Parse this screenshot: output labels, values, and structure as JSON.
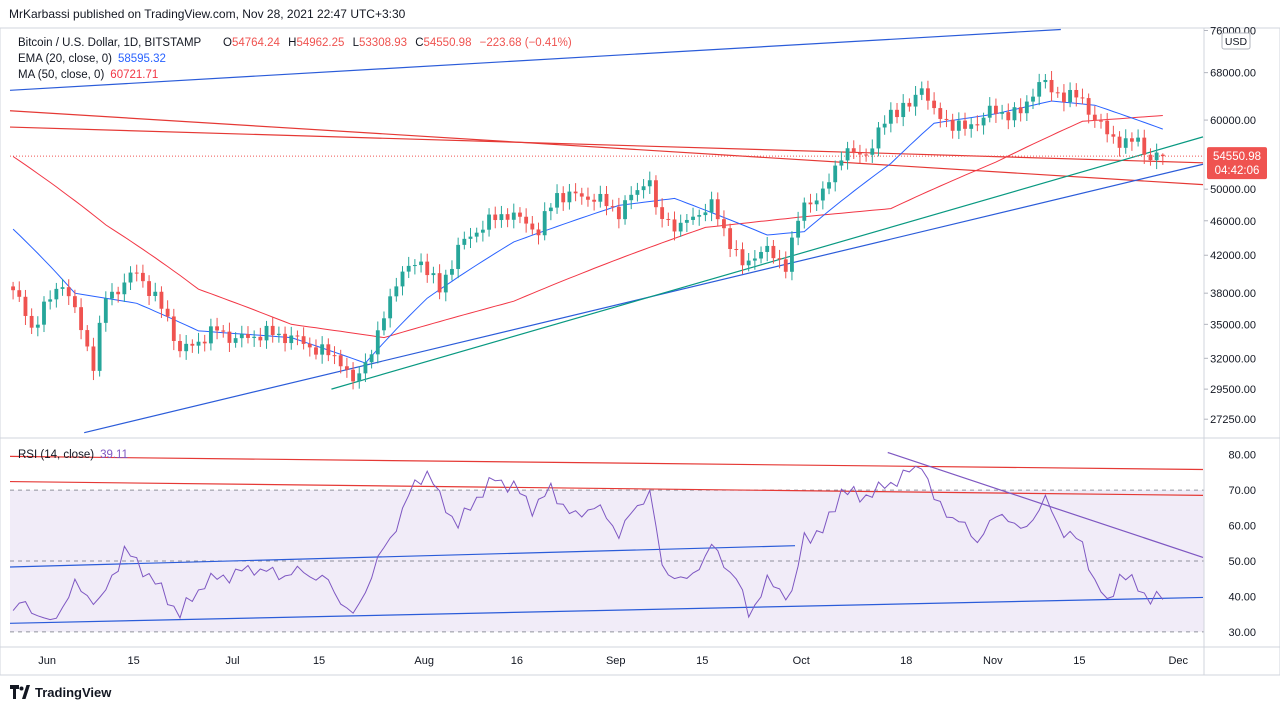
{
  "header": {
    "publisher_line": "MrKarbassi published on TradingView.com, Nov 28, 2021 22:47 UTC+3:30"
  },
  "legend": {
    "symbol": "Bitcoin / U.S. Dollar, 1D, BITSTAMP",
    "ohlc": [
      {
        "label": "O",
        "value": "54764.24"
      },
      {
        "label": "H",
        "value": "54962.25"
      },
      {
        "label": "L",
        "value": "53308.93"
      },
      {
        "label": "C",
        "value": "54550.98"
      }
    ],
    "change": "−223.68 (−0.41%)",
    "ema_label": "EMA (20, close, 0)",
    "ema_value": "58595.32",
    "ma_label": "MA (50, close, 0)",
    "ma_value": "60721.71"
  },
  "rsi_legend": {
    "label": "RSI (14, close)",
    "value": "39.11"
  },
  "price_badge": {
    "price": "54550.98",
    "countdown": "04:42:06"
  },
  "currency": "USD",
  "footer": {
    "brand": "TradingView"
  },
  "colors": {
    "up": "#26a69a",
    "down": "#ef5350",
    "ema": "#2962ff",
    "ma": "#f23645",
    "rsi": "#7e57c2",
    "rsi_band": "#ede7f6",
    "trend_blue": "#2b5cd9",
    "trend_red": "#e53935",
    "trend_green": "#089981",
    "trend_purple": "#7e57c2"
  },
  "chart_data": [
    {
      "type": "candlestick",
      "y_axis_scale": "log",
      "ylim": [
        26000,
        76500
      ],
      "y_ticks": [
        27250,
        29500,
        32000,
        35000,
        38000,
        42000,
        46000,
        50000,
        54550.98,
        60000,
        68000,
        76000
      ],
      "y_tick_labels": [
        "27250.00",
        "29500.00",
        "32000.00",
        "35000.00",
        "38000.00",
        "42000.00",
        "46000.00",
        "50000.00",
        "54550.98",
        "60000.00",
        "68000.00",
        "76000.00"
      ],
      "x_ticks": [
        "2021-06-01",
        "2021-06-15",
        "2021-07-01",
        "2021-07-15",
        "2021-08-01",
        "2021-08-16",
        "2021-09-01",
        "2021-09-15",
        "2021-10-01",
        "2021-10-18",
        "2021-11-01",
        "2021-11-15",
        "2021-12-01"
      ],
      "x_tick_labels": [
        "Jun",
        "15",
        "Jul",
        "15",
        "Aug",
        "16",
        "Sep",
        "15",
        "Oct",
        "18",
        "Nov",
        "15",
        "Dec"
      ],
      "xlim": [
        "2021-05-26",
        "2021-12-05"
      ],
      "anchors": [
        [
          "2021-05-26",
          38300
        ],
        [
          "2021-05-29",
          34700
        ],
        [
          "2021-06-03",
          39200
        ],
        [
          "2021-06-08",
          31500
        ],
        [
          "2021-06-10",
          37500
        ],
        [
          "2021-06-13",
          39000
        ],
        [
          "2021-06-15",
          40200
        ],
        [
          "2021-06-20",
          35600
        ],
        [
          "2021-06-22",
          32500
        ],
        [
          "2021-06-28",
          34500
        ],
        [
          "2021-07-01",
          33600
        ],
        [
          "2021-07-06",
          34200
        ],
        [
          "2021-07-10",
          33800
        ],
        [
          "2021-07-14",
          32800
        ],
        [
          "2021-07-18",
          31900
        ],
        [
          "2021-07-20",
          29800
        ],
        [
          "2021-07-24",
          33800
        ],
        [
          "2021-07-27",
          39400
        ],
        [
          "2021-07-31",
          41500
        ],
        [
          "2021-08-03",
          38200
        ],
        [
          "2021-08-06",
          42800
        ],
        [
          "2021-08-10",
          45500
        ],
        [
          "2021-08-14",
          47000
        ],
        [
          "2021-08-19",
          44800
        ],
        [
          "2021-08-22",
          49300
        ],
        [
          "2021-08-28",
          48900
        ],
        [
          "2021-09-01",
          47100
        ],
        [
          "2021-09-06",
          51700
        ],
        [
          "2021-09-07",
          46800
        ],
        [
          "2021-09-11",
          45200
        ],
        [
          "2021-09-14",
          47100
        ],
        [
          "2021-09-16",
          47800
        ],
        [
          "2021-09-21",
          40700
        ],
        [
          "2021-09-24",
          42700
        ],
        [
          "2021-09-28",
          41000
        ],
        [
          "2021-10-01",
          48200
        ],
        [
          "2021-10-04",
          49200
        ],
        [
          "2021-10-07",
          55000
        ],
        [
          "2021-10-10",
          54700
        ],
        [
          "2021-10-12",
          56000
        ],
        [
          "2021-10-15",
          61500
        ],
        [
          "2021-10-18",
          62000
        ],
        [
          "2021-10-20",
          66000
        ],
        [
          "2021-10-22",
          60900
        ],
        [
          "2021-10-27",
          58500
        ],
        [
          "2021-10-31",
          61300
        ],
        [
          "2021-11-05",
          61000
        ],
        [
          "2021-11-08",
          66500
        ],
        [
          "2021-11-10",
          64800
        ],
        [
          "2021-11-12",
          64100
        ],
        [
          "2021-11-15",
          63400
        ],
        [
          "2021-11-17",
          60000
        ],
        [
          "2021-11-19",
          58000
        ],
        [
          "2021-11-22",
          56200
        ],
        [
          "2021-11-24",
          57100
        ],
        [
          "2021-11-26",
          54000
        ],
        [
          "2021-11-28",
          54550.98
        ]
      ],
      "ema20_anchors": [
        [
          "2021-05-26",
          45000
        ],
        [
          "2021-06-05",
          38000
        ],
        [
          "2021-06-15",
          37000
        ],
        [
          "2021-06-25",
          34400
        ],
        [
          "2021-07-10",
          33800
        ],
        [
          "2021-07-22",
          31600
        ],
        [
          "2021-08-01",
          37500
        ],
        [
          "2021-08-15",
          43500
        ],
        [
          "2021-09-01",
          47900
        ],
        [
          "2021-09-10",
          48800
        ],
        [
          "2021-09-25",
          44300
        ],
        [
          "2021-10-01",
          44700
        ],
        [
          "2021-10-15",
          53500
        ],
        [
          "2021-10-22",
          59500
        ],
        [
          "2021-11-01",
          61000
        ],
        [
          "2021-11-10",
          63100
        ],
        [
          "2021-11-17",
          62400
        ],
        [
          "2021-11-28",
          58595.32
        ]
      ],
      "ma50_anchors": [
        [
          "2021-05-26",
          54500
        ],
        [
          "2021-06-10",
          45500
        ],
        [
          "2021-06-25",
          38400
        ],
        [
          "2021-07-10",
          35000
        ],
        [
          "2021-07-25",
          33800
        ],
        [
          "2021-08-15",
          37200
        ],
        [
          "2021-09-01",
          41600
        ],
        [
          "2021-09-15",
          45200
        ],
        [
          "2021-10-01",
          46500
        ],
        [
          "2021-10-15",
          47500
        ],
        [
          "2021-11-01",
          53700
        ],
        [
          "2021-11-15",
          59800
        ],
        [
          "2021-11-28",
          60721.71
        ]
      ],
      "trendlines": [
        {
          "color": "trend_blue",
          "from": [
            "2021-05-26",
            64900
          ],
          "to": [
            "2021-11-12",
            76200
          ]
        },
        {
          "color": "trend_red",
          "from": [
            "2021-05-26",
            61500
          ],
          "to": [
            "2021-12-05",
            50600
          ]
        },
        {
          "color": "trend_red",
          "from": [
            "2021-05-26",
            58900
          ],
          "to": [
            "2021-12-05",
            53600
          ]
        },
        {
          "color": "trend_blue",
          "from": [
            "2021-06-07",
            26300
          ],
          "to": [
            "2021-12-05",
            53400
          ]
        },
        {
          "color": "trend_green",
          "from": [
            "2021-07-17",
            29500
          ],
          "to": [
            "2021-12-05",
            57400
          ]
        }
      ]
    },
    {
      "type": "line",
      "name": "RSI (14, close)",
      "ylim": [
        26,
        83
      ],
      "y_ticks": [
        30,
        40,
        50,
        60,
        70,
        80
      ],
      "y_tick_labels": [
        "30.00",
        "40.00",
        "50.00",
        "60.00",
        "70.00",
        "80.00"
      ],
      "band": [
        30,
        70
      ],
      "midline": 50,
      "anchors": [
        [
          "2021-05-26",
          36
        ],
        [
          "2021-05-28",
          38
        ],
        [
          "2021-06-01",
          32
        ],
        [
          "2021-06-05",
          43
        ],
        [
          "2021-06-09",
          38
        ],
        [
          "2021-06-13",
          53
        ],
        [
          "2021-06-17",
          46
        ],
        [
          "2021-06-22",
          35
        ],
        [
          "2021-06-26",
          44
        ],
        [
          "2021-06-30",
          46
        ],
        [
          "2021-07-04",
          48
        ],
        [
          "2021-07-08",
          46
        ],
        [
          "2021-07-12",
          47
        ],
        [
          "2021-07-16",
          44
        ],
        [
          "2021-07-20",
          34
        ],
        [
          "2021-07-24",
          50
        ],
        [
          "2021-07-27",
          60
        ],
        [
          "2021-07-30",
          72
        ],
        [
          "2021-08-01",
          75
        ],
        [
          "2021-08-03",
          68
        ],
        [
          "2021-08-06",
          60
        ],
        [
          "2021-08-09",
          68
        ],
        [
          "2021-08-12",
          73
        ],
        [
          "2021-08-15",
          71
        ],
        [
          "2021-08-18",
          65
        ],
        [
          "2021-08-21",
          70
        ],
        [
          "2021-08-25",
          62
        ],
        [
          "2021-08-28",
          66
        ],
        [
          "2021-09-01",
          58
        ],
        [
          "2021-09-06",
          70
        ],
        [
          "2021-09-08",
          48
        ],
        [
          "2021-09-12",
          44
        ],
        [
          "2021-09-16",
          54
        ],
        [
          "2021-09-20",
          45
        ],
        [
          "2021-09-22",
          35
        ],
        [
          "2021-09-25",
          44
        ],
        [
          "2021-09-29",
          40
        ],
        [
          "2021-10-01",
          57
        ],
        [
          "2021-10-04",
          58
        ],
        [
          "2021-10-07",
          70
        ],
        [
          "2021-10-10",
          68
        ],
        [
          "2021-10-13",
          70
        ],
        [
          "2021-10-16",
          73
        ],
        [
          "2021-10-19",
          76
        ],
        [
          "2021-10-20",
          78
        ],
        [
          "2021-10-22",
          67
        ],
        [
          "2021-10-26",
          61
        ],
        [
          "2021-10-29",
          56
        ],
        [
          "2021-11-02",
          64
        ],
        [
          "2021-11-05",
          58
        ],
        [
          "2021-11-09",
          67
        ],
        [
          "2021-11-12",
          58
        ],
        [
          "2021-11-15",
          55
        ],
        [
          "2021-11-17",
          44
        ],
        [
          "2021-11-19",
          38
        ],
        [
          "2021-11-21",
          46
        ],
        [
          "2021-11-24",
          43
        ],
        [
          "2021-11-26",
          39
        ],
        [
          "2021-11-28",
          39.11
        ]
      ],
      "trendlines": [
        {
          "color": "trend_red",
          "from": [
            "2021-05-26",
            79.5
          ],
          "to": [
            "2021-12-05",
            75.8
          ]
        },
        {
          "color": "trend_red",
          "from": [
            "2021-05-26",
            72.4
          ],
          "to": [
            "2021-12-05",
            68.5
          ]
        },
        {
          "color": "trend_blue",
          "from": [
            "2021-05-26",
            48.3
          ],
          "to": [
            "2021-09-30",
            54.3
          ]
        },
        {
          "color": "trend_blue",
          "from": [
            "2021-05-26",
            32.4
          ],
          "to": [
            "2021-12-05",
            39.7
          ]
        },
        {
          "color": "trend_purple",
          "from": [
            "2021-10-15",
            80.6
          ],
          "to": [
            "2021-12-05",
            51.0
          ]
        }
      ]
    }
  ]
}
